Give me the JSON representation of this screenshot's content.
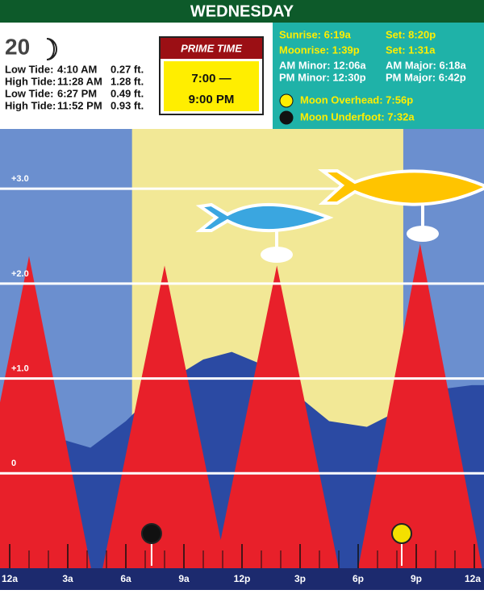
{
  "header": {
    "title": "WEDNESDAY"
  },
  "info": {
    "day": "20",
    "tides": [
      [
        "Low Tide:",
        "4:10 AM",
        "0.27 ft."
      ],
      [
        "High Tide:",
        "11:28 AM",
        "1.28 ft."
      ],
      [
        "Low Tide:",
        "6:27 PM",
        "0.49 ft."
      ],
      [
        "High Tide:",
        "11:52 PM",
        "0.93 ft."
      ]
    ],
    "prime_time": {
      "title": "PRIME TIME",
      "start": "7:00 —",
      "end": "9:00 PM"
    },
    "sun_moon": [
      [
        "Sunrise: 6:19a",
        "Set: 8:20p"
      ],
      [
        "Moonrise: 1:39p",
        "Set: 1:31a"
      ],
      [
        "AM Minor: 12:06a",
        "AM Major: 6:18a"
      ],
      [
        "PM Minor: 12:30p",
        "PM Major: 6:42p"
      ]
    ],
    "moon": [
      "Moon Overhead: 7:56p",
      "Moon Underfoot: 7:32a"
    ]
  },
  "chart_data": {
    "type": "area",
    "xlim": [
      0,
      24
    ],
    "ylim": [
      -1,
      3.63
    ],
    "xticks": [
      {
        "value": 0,
        "label": "12a"
      },
      {
        "value": 3,
        "label": "3a"
      },
      {
        "value": 6,
        "label": "6a"
      },
      {
        "value": 9,
        "label": "9a"
      },
      {
        "value": 12,
        "label": "12p"
      },
      {
        "value": 15,
        "label": "3p"
      },
      {
        "value": 18,
        "label": "6p"
      },
      {
        "value": 21,
        "label": "9p"
      },
      {
        "value": 24,
        "label": "12a"
      }
    ],
    "yticks": [
      {
        "value": 3,
        "label": "+3.0"
      },
      {
        "value": 2,
        "label": "+2.0"
      },
      {
        "value": 1,
        "label": "+1.0"
      },
      0
    ],
    "grid": true,
    "daylight": [
      6.32,
      20.33
    ],
    "tide": {
      "color": "#2b4aa3",
      "x": [
        0,
        2,
        4.17,
        6,
        8,
        10,
        11.47,
        13,
        15,
        16.5,
        18.45,
        20,
        22,
        23.87,
        24
      ],
      "values": [
        0.7,
        0.4,
        0.27,
        0.55,
        0.95,
        1.2,
        1.28,
        1.15,
        0.8,
        0.55,
        0.49,
        0.65,
        0.88,
        0.93,
        0.93
      ]
    },
    "activity": {
      "color": "#e8202a",
      "x": [
        1,
        8,
        13.8,
        21.2
      ],
      "values": [
        2.29,
        2.19,
        2.19,
        2.42
      ]
    },
    "moon_markers": {
      "x": [
        7.33,
        20.25
      ],
      "colors": [
        "#111111",
        "#f4e000"
      ]
    }
  }
}
